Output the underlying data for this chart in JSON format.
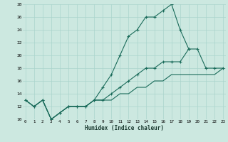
{
  "xlabel": "Humidex (Indice chaleur)",
  "background_color": "#cce8e0",
  "grid_color": "#aad4cc",
  "line_color": "#1a6b5a",
  "series1_x": [
    0,
    1,
    2,
    3,
    4,
    5,
    6,
    7,
    8,
    9,
    10,
    11,
    12,
    13,
    14,
    15,
    16,
    17,
    18,
    19
  ],
  "series1_y": [
    13,
    12,
    13,
    10,
    11,
    12,
    12,
    12,
    13,
    15,
    17,
    20,
    23,
    24,
    26,
    26,
    27,
    28,
    24,
    21
  ],
  "series2_x": [
    0,
    1,
    2,
    3,
    4,
    5,
    6,
    7,
    8,
    9,
    10,
    11,
    12,
    13,
    14,
    15,
    16,
    17,
    18,
    19,
    20,
    21,
    22,
    23
  ],
  "series2_y": [
    13,
    12,
    13,
    10,
    11,
    12,
    12,
    12,
    13,
    13,
    14,
    15,
    16,
    17,
    18,
    18,
    19,
    19,
    19,
    21,
    21,
    18,
    18,
    18
  ],
  "series3_x": [
    0,
    1,
    2,
    3,
    4,
    5,
    6,
    7,
    8,
    9,
    10,
    11,
    12,
    13,
    14,
    15,
    16,
    17,
    18,
    19,
    20,
    21,
    22,
    23
  ],
  "series3_y": [
    13,
    12,
    13,
    10,
    11,
    12,
    12,
    12,
    13,
    13,
    13,
    14,
    14,
    15,
    15,
    16,
    16,
    17,
    17,
    17,
    17,
    17,
    17,
    18
  ],
  "ylim": [
    10,
    28
  ],
  "xlim": [
    -0.3,
    23.3
  ],
  "yticks": [
    10,
    12,
    14,
    16,
    18,
    20,
    22,
    24,
    26,
    28
  ],
  "xticks": [
    0,
    1,
    2,
    3,
    4,
    5,
    6,
    7,
    8,
    9,
    10,
    11,
    12,
    13,
    14,
    15,
    16,
    17,
    18,
    19,
    20,
    21,
    22,
    23
  ]
}
